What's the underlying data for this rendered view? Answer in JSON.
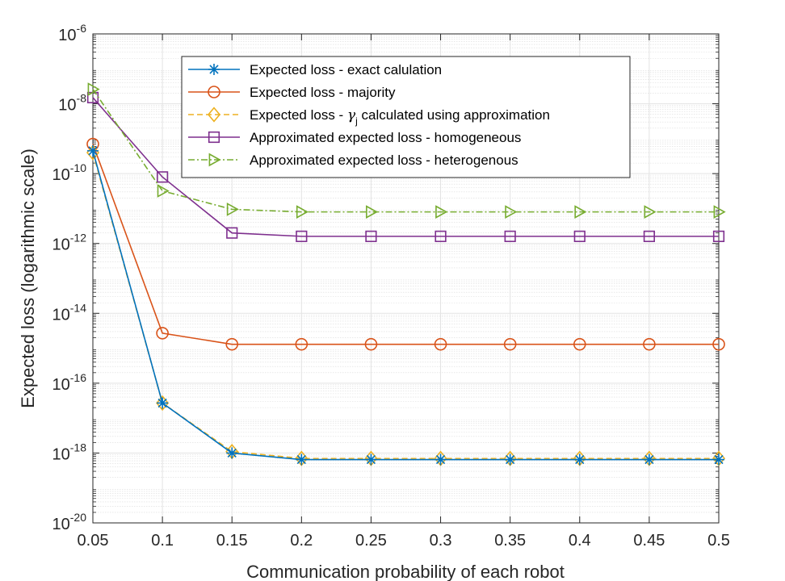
{
  "chart_data": {
    "type": "line",
    "xlabel": "Communication probability of each robot",
    "ylabel": "Expected loss (logarithmic scale)",
    "yscale": "log",
    "grid": true,
    "legend_position": "top-right",
    "x": [
      0.05,
      0.1,
      0.15,
      0.2,
      0.25,
      0.3,
      0.35,
      0.4,
      0.45,
      0.5
    ],
    "xlim": [
      0.05,
      0.5
    ],
    "ylim": [
      1e-20,
      1e-06
    ],
    "x_ticks": [
      "0.05",
      "0.1",
      "0.15",
      "0.2",
      "0.25",
      "0.3",
      "0.35",
      "0.4",
      "0.45",
      "0.5"
    ],
    "y_ticks": [
      {
        "base": "10",
        "exp": "-20",
        "value": 1e-20
      },
      {
        "base": "10",
        "exp": "-18",
        "value": 1e-18
      },
      {
        "base": "10",
        "exp": "-16",
        "value": 1e-16
      },
      {
        "base": "10",
        "exp": "-14",
        "value": 1e-14
      },
      {
        "base": "10",
        "exp": "-12",
        "value": 1e-12
      },
      {
        "base": "10",
        "exp": "-10",
        "value": 1e-10
      },
      {
        "base": "10",
        "exp": "-8",
        "value": 1e-08
      },
      {
        "base": "10",
        "exp": "-6",
        "value": 1e-06
      }
    ],
    "series": [
      {
        "name": "Expected loss - exact calulation",
        "label_pre": "Expected loss - exact calulation",
        "color": "#0072BD",
        "dash": "solid",
        "marker": "asterisk",
        "values": [
          4.5e-10,
          2.7e-17,
          1e-18,
          6.5e-19,
          6.5e-19,
          6.5e-19,
          6.5e-19,
          6.5e-19,
          6.5e-19,
          6.5e-19
        ]
      },
      {
        "name": "Expected loss - majority",
        "label_pre": "Expected loss - majority",
        "color": "#D95319",
        "dash": "solid",
        "marker": "circle",
        "values": [
          7e-10,
          2.7e-15,
          1.3e-15,
          1.3e-15,
          1.3e-15,
          1.3e-15,
          1.3e-15,
          1.3e-15,
          1.3e-15,
          1.3e-15
        ]
      },
      {
        "name": "Expected loss - γj calculated using approximation",
        "label_pre": "Expected loss - ",
        "label_gamma": "γ",
        "label_sub": "j",
        "label_post": " calculated using approximation",
        "color": "#EDB120",
        "dash": "dashed",
        "marker": "diamond",
        "values": [
          4e-10,
          2.7e-17,
          1.1e-18,
          7e-19,
          7e-19,
          7e-19,
          7e-19,
          7e-19,
          7e-19,
          7e-19
        ]
      },
      {
        "name": "Approximated expected loss - homogeneous",
        "label_pre": "Approximated expected loss - homogeneous",
        "color": "#7E2F8E",
        "dash": "solid",
        "marker": "square",
        "values": [
          1.5e-08,
          8e-11,
          2e-12,
          1.6e-12,
          1.6e-12,
          1.6e-12,
          1.6e-12,
          1.6e-12,
          1.6e-12,
          1.6e-12
        ]
      },
      {
        "name": "Approximated expected loss - heterogenous",
        "label_pre": "Approximated expected loss - heterogenous",
        "color": "#77AC30",
        "dash": "dashdot",
        "marker": "triangle-right",
        "values": [
          2.6e-08,
          3.2e-11,
          9.5e-12,
          8e-12,
          8e-12,
          8e-12,
          8e-12,
          8e-12,
          8e-12,
          8e-12
        ]
      }
    ]
  }
}
